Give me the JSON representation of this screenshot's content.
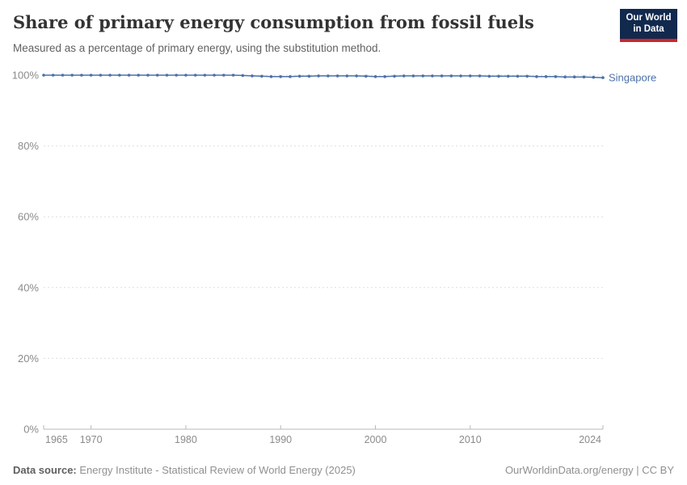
{
  "header": {
    "title": "Share of primary energy consumption from fossil fuels",
    "subtitle": "Measured as a percentage of primary energy, using the substitution method.",
    "logo": {
      "line1": "Our World",
      "line2": "in Data"
    }
  },
  "chart_data": {
    "type": "line",
    "title": "Share of primary energy consumption from fossil fuels",
    "xlabel": "",
    "ylabel": "",
    "ylim": [
      0,
      100
    ],
    "yticks": [
      0,
      20,
      40,
      60,
      80,
      100
    ],
    "ytick_suffix": "%",
    "xticks": [
      1965,
      1970,
      1980,
      1990,
      2000,
      2010,
      2024
    ],
    "grid": "dashed-horizontal",
    "legend_position": "end-of-line-label",
    "series": [
      {
        "name": "Singapore",
        "color": "#4c70a9",
        "years": [
          1965,
          1966,
          1967,
          1968,
          1969,
          1970,
          1971,
          1972,
          1973,
          1974,
          1975,
          1976,
          1977,
          1978,
          1979,
          1980,
          1981,
          1982,
          1983,
          1984,
          1985,
          1986,
          1987,
          1988,
          1989,
          1990,
          1991,
          1992,
          1993,
          1994,
          1995,
          1996,
          1997,
          1998,
          1999,
          2000,
          2001,
          2002,
          2003,
          2004,
          2005,
          2006,
          2007,
          2008,
          2009,
          2010,
          2011,
          2012,
          2013,
          2014,
          2015,
          2016,
          2017,
          2018,
          2019,
          2020,
          2021,
          2022,
          2023,
          2024
        ],
        "values": [
          100,
          100,
          100,
          100,
          100,
          100,
          100,
          100,
          100,
          100,
          100,
          100,
          100,
          100,
          100,
          100,
          100,
          100,
          100,
          100,
          100,
          99.9,
          99.8,
          99.7,
          99.6,
          99.6,
          99.6,
          99.7,
          99.7,
          99.8,
          99.8,
          99.8,
          99.8,
          99.8,
          99.7,
          99.6,
          99.6,
          99.7,
          99.8,
          99.8,
          99.8,
          99.8,
          99.8,
          99.8,
          99.8,
          99.8,
          99.8,
          99.7,
          99.7,
          99.7,
          99.7,
          99.7,
          99.6,
          99.6,
          99.6,
          99.5,
          99.5,
          99.5,
          99.4,
          99.3
        ]
      }
    ]
  },
  "footer": {
    "datasource_label": "Data source:",
    "datasource_value": " Energy Institute - Statistical Review of World Energy (2025)",
    "credit": "OurWorldinData.org/energy | CC BY"
  },
  "colors": {
    "line": "#4c70a9",
    "gridline": "#dedede",
    "axis": "#b9b9b9",
    "tick_label": "#8b8b8b",
    "logo_navy": "#12294e",
    "logo_red": "#c8282d"
  }
}
